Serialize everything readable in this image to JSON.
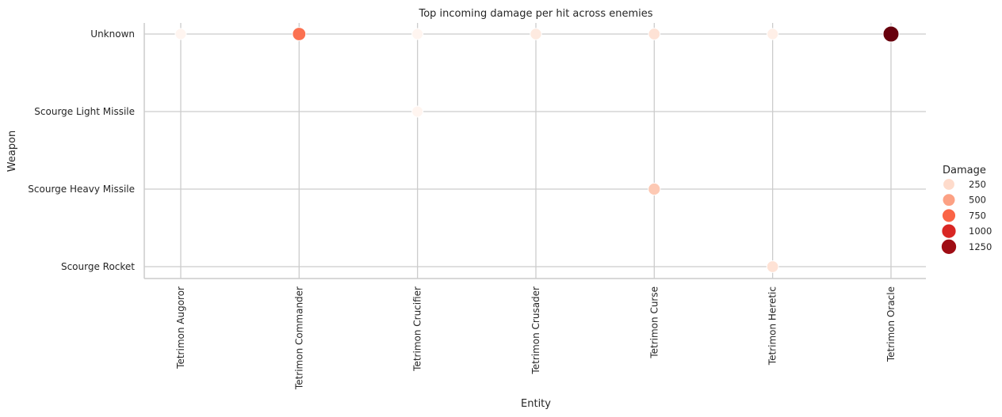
{
  "chart_data": {
    "type": "scatter",
    "title": "Top incoming damage per hit across enemies",
    "xlabel": "Entity",
    "ylabel": "Weapon",
    "x_categories": [
      "Tetrimon Augoror",
      "Tetrimon Commander",
      "Tetrimon Crucifier",
      "Tetrimon Crusader",
      "Tetrimon Curse",
      "Tetrimon Heretic",
      "Tetrimon Oracle"
    ],
    "y_categories": [
      "Unknown",
      "Scourge Light Missile",
      "Scourge Heavy Missile",
      "Scourge Rocket"
    ],
    "size_hue_variable": "Damage",
    "grid": true,
    "legend": {
      "title": "Damage",
      "placement": "right",
      "entries": [
        {
          "label": "250",
          "value": 250
        },
        {
          "label": "500",
          "value": 500
        },
        {
          "label": "750",
          "value": 750
        },
        {
          "label": "1000",
          "value": 1000
        },
        {
          "label": "1250",
          "value": 1250
        }
      ]
    },
    "points": [
      {
        "x": "Tetrimon Augoror",
        "y": "Unknown",
        "damage": 60
      },
      {
        "x": "Tetrimon Commander",
        "y": "Unknown",
        "damage": 700
      },
      {
        "x": "Tetrimon Crucifier",
        "y": "Unknown",
        "damage": 60
      },
      {
        "x": "Tetrimon Crusader",
        "y": "Unknown",
        "damage": 150
      },
      {
        "x": "Tetrimon Curse",
        "y": "Unknown",
        "damage": 210
      },
      {
        "x": "Tetrimon Heretic",
        "y": "Unknown",
        "damage": 110
      },
      {
        "x": "Tetrimon Oracle",
        "y": "Unknown",
        "damage": 1400
      },
      {
        "x": "Tetrimon Crucifier",
        "y": "Scourge Light Missile",
        "damage": 60
      },
      {
        "x": "Tetrimon Curse",
        "y": "Scourge Heavy Missile",
        "damage": 330
      },
      {
        "x": "Tetrimon Heretic",
        "y": "Scourge Rocket",
        "damage": 210
      }
    ],
    "damage_range": [
      60,
      1400
    ]
  }
}
